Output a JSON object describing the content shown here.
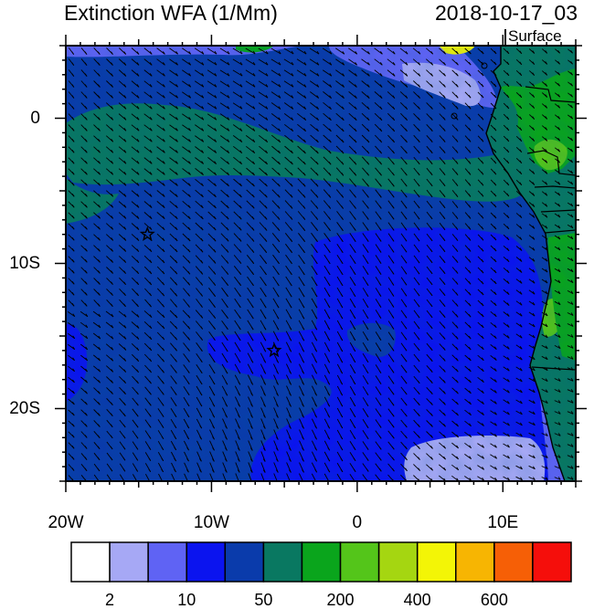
{
  "title": "Extinction WFA (1/Mm)",
  "timestamp": "2018-10-17_03",
  "level": "Surface",
  "map": {
    "lon_range": [
      -20,
      15
    ],
    "lat_range": [
      -25,
      5
    ],
    "lat_ticks": [
      {
        "value": 0,
        "label": "0"
      },
      {
        "value": -10,
        "label": "10S"
      },
      {
        "value": -20,
        "label": "20S"
      }
    ],
    "lon_ticks": [
      {
        "value": -20,
        "label": "20W"
      },
      {
        "value": -10,
        "label": "10W"
      },
      {
        "value": 0,
        "label": "0"
      },
      {
        "value": 10,
        "label": "10E"
      }
    ],
    "markers": [
      {
        "name": "star-marker-north",
        "lon": -14.4,
        "lat": -8.0
      },
      {
        "name": "star-marker-south",
        "lon": -5.7,
        "lat": -16.0
      }
    ]
  },
  "colorbar": {
    "colors": [
      "#ffffff",
      "#a6a8f5",
      "#5f63f4",
      "#0b14ef",
      "#0a3bab",
      "#097861",
      "#0aa51c",
      "#54c51a",
      "#a5d611",
      "#f3f506",
      "#f7b502",
      "#f65f06",
      "#f50e0b"
    ],
    "labels": [
      {
        "boundary": 1,
        "text": "2"
      },
      {
        "boundary": 3,
        "text": "10"
      },
      {
        "boundary": 5,
        "text": "50"
      },
      {
        "boundary": 7,
        "text": "200"
      },
      {
        "boundary": 9,
        "text": "400"
      },
      {
        "boundary": 11,
        "text": "600"
      }
    ]
  }
}
